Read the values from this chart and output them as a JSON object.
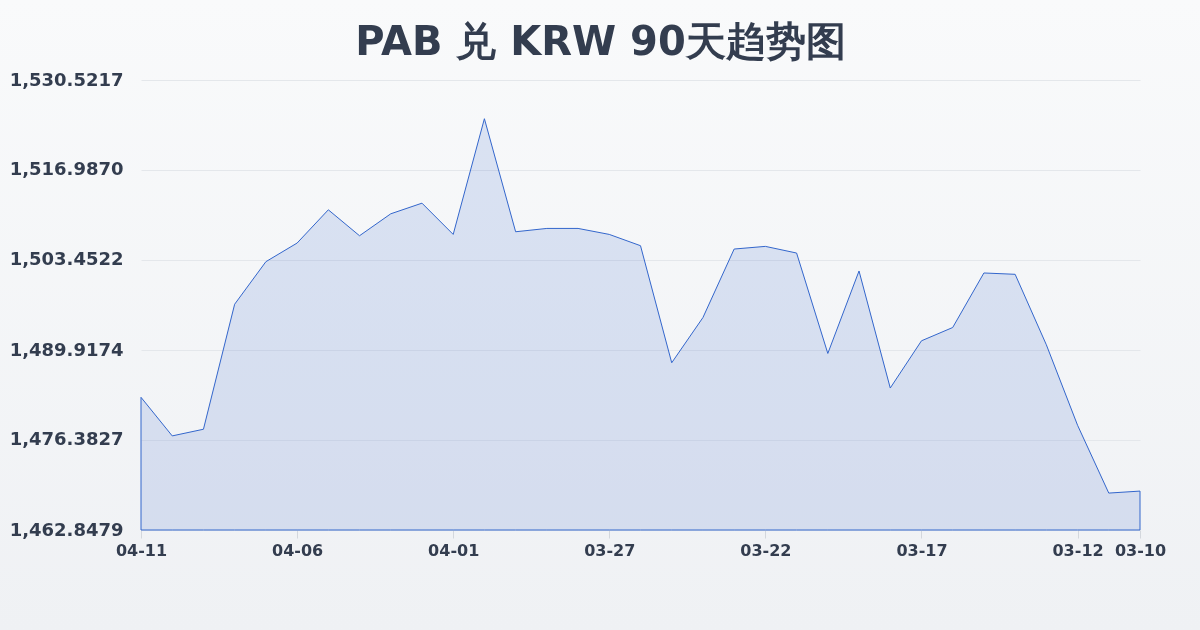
{
  "chart_data": {
    "type": "area",
    "title": "PAB 兑 KRW 90天趋势图",
    "categories": [
      "04-11",
      null,
      null,
      null,
      null,
      "04-06",
      null,
      null,
      null,
      null,
      "04-01",
      null,
      null,
      null,
      null,
      "03-27",
      null,
      null,
      null,
      null,
      "03-22",
      null,
      null,
      null,
      null,
      "03-17",
      null,
      null,
      null,
      null,
      "03-12",
      null,
      "03-10"
    ],
    "series": [
      {
        "color": "#3366cc",
        "values": [
          1482.8,
          1477.0,
          1478.0,
          1496.8,
          1503.2,
          1506.0,
          1511.0,
          1507.1,
          1510.4,
          1512.0,
          1507.3,
          1524.7,
          1507.7,
          1508.2,
          1508.2,
          1507.3,
          1505.6,
          1488.0,
          1494.8,
          1505.1,
          1505.5,
          1504.5,
          1489.4,
          1501.8,
          1484.2,
          1491.3,
          1493.3,
          1501.5,
          1501.3,
          1490.7,
          1478.6,
          1468.4,
          1468.7
        ]
      }
    ],
    "ylim": [
      1462.8479,
      1530.5217
    ],
    "yticks": [
      {
        "value": 1462.8479,
        "label": "1,462.8479"
      },
      {
        "value": 1476.3827,
        "label": "1,476.3827"
      },
      {
        "value": 1489.9174,
        "label": "1,489.9174"
      },
      {
        "value": 1503.4522,
        "label": "1,503.4522"
      },
      {
        "value": 1516.987,
        "label": "1,516.9870"
      },
      {
        "value": 1530.5217,
        "label": "1,530.5217"
      }
    ],
    "grid": "y"
  }
}
